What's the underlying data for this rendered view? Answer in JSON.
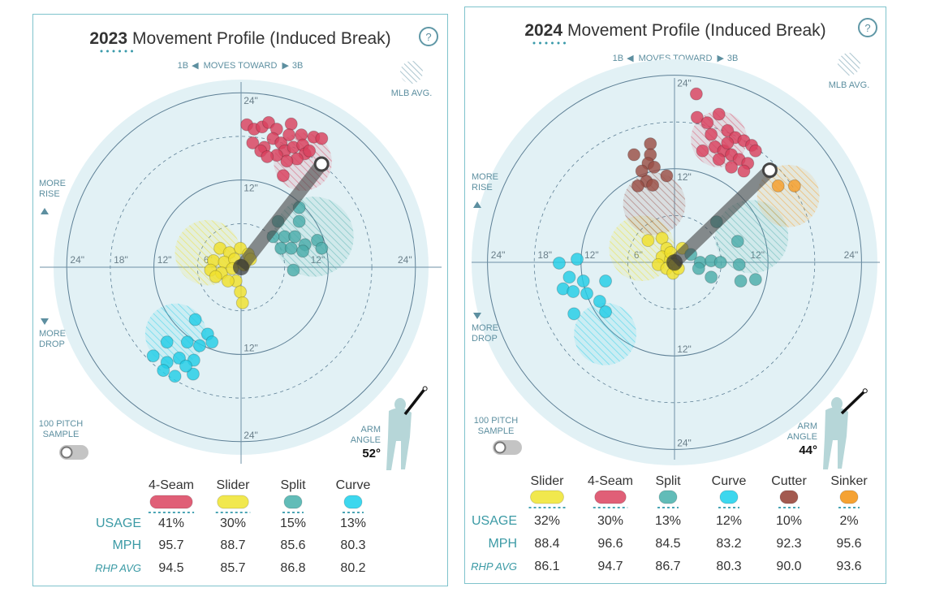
{
  "panels": [
    {
      "year": "2023",
      "title": "Movement Profile (Induced Break)",
      "help": "?",
      "moves": {
        "left": "1B",
        "middle": "MOVES TOWARD",
        "right": "3B"
      },
      "mlb_avg": "MLB AVG.",
      "more_rise": [
        "MORE",
        "RISE"
      ],
      "more_drop": [
        "MORE",
        "DROP"
      ],
      "sample": [
        "100 PITCH",
        "SAMPLE"
      ],
      "sample_toggle_on": false,
      "arm_angle_label": [
        "ARM",
        "ANGLE"
      ],
      "arm_angle": "52°",
      "arm_angle_deg": 52,
      "row_labels": [
        "USAGE",
        "MPH",
        "RHP AVG"
      ],
      "table": [
        {
          "name": "4-Seam",
          "pill": "#e05f77",
          "usage": "41%",
          "usage_pct": 41,
          "mph": "95.7",
          "rhp_avg": "94.5"
        },
        {
          "name": "Slider",
          "pill": "#f1e84e",
          "usage": "30%",
          "usage_pct": 30,
          "mph": "88.7",
          "rhp_avg": "85.7"
        },
        {
          "name": "Split",
          "pill": "#62bcb8",
          "usage": "15%",
          "usage_pct": 15,
          "mph": "85.6",
          "rhp_avg": "86.8"
        },
        {
          "name": "Curve",
          "pill": "#3dd7ee",
          "usage": "13%",
          "usage_pct": 13,
          "mph": "80.3",
          "rhp_avg": "80.2"
        }
      ]
    },
    {
      "year": "2024",
      "title": "Movement Profile (Induced Break)",
      "help": "?",
      "moves": {
        "left": "1B",
        "middle": "MOVES TOWARD",
        "right": "3B"
      },
      "mlb_avg": "MLB AVG.",
      "more_rise": [
        "MORE",
        "RISE"
      ],
      "more_drop": [
        "MORE",
        "DROP"
      ],
      "sample": [
        "100 PITCH",
        "SAMPLE"
      ],
      "sample_toggle_on": false,
      "arm_angle_label": [
        "ARM",
        "ANGLE"
      ],
      "arm_angle": "44°",
      "arm_angle_deg": 44,
      "row_labels": [
        "USAGE",
        "MPH",
        "RHP AVG"
      ],
      "table": [
        {
          "name": "Slider",
          "pill": "#f1e84e",
          "usage": "32%",
          "usage_pct": 32,
          "mph": "88.4",
          "rhp_avg": "86.1"
        },
        {
          "name": "4-Seam",
          "pill": "#e05f77",
          "usage": "30%",
          "usage_pct": 30,
          "mph": "96.6",
          "rhp_avg": "94.7"
        },
        {
          "name": "Split",
          "pill": "#62bcb8",
          "usage": "13%",
          "usage_pct": 13,
          "mph": "84.5",
          "rhp_avg": "86.7"
        },
        {
          "name": "Curve",
          "pill": "#3dd7ee",
          "usage": "12%",
          "usage_pct": 12,
          "mph": "83.2",
          "rhp_avg": "80.3"
        },
        {
          "name": "Cutter",
          "pill": "#a35a50",
          "usage": "10%",
          "usage_pct": 10,
          "mph": "92.3",
          "rhp_avg": "90.0"
        },
        {
          "name": "Sinker",
          "pill": "#f5a233",
          "usage": "2%",
          "usage_pct": 2,
          "mph": "95.6",
          "rhp_avg": "93.6"
        }
      ]
    }
  ],
  "chart_data": [
    {
      "type": "scatter",
      "title": "2023 Movement Profile (Induced Break)",
      "xlabel": "Horizontal break (in), 1B ← → 3B",
      "ylabel": "Induced vertical break (in)",
      "rings": [
        6,
        12,
        18,
        24
      ],
      "tick_labels": {
        "left": [
          "24\"",
          "18\"",
          "12\"",
          "6\""
        ],
        "right": [
          "12\"",
          "24\""
        ],
        "top": [
          "24\"",
          "12\""
        ],
        "bottom": [
          "12\"",
          "24\""
        ]
      },
      "series": [
        {
          "name": "4-Seam",
          "color": "#d9415e",
          "mlb_avg": {
            "x": 8.5,
            "y": 14.5,
            "r": 4
          },
          "points": [
            [
              0.8,
              19.6
            ],
            [
              1.8,
              19.0
            ],
            [
              2.9,
              19.3
            ],
            [
              3.8,
              19.9
            ],
            [
              4.9,
              19.0
            ],
            [
              6.9,
              19.7
            ],
            [
              8.3,
              18.2
            ],
            [
              10.0,
              17.9
            ],
            [
              11.1,
              17.7
            ],
            [
              1.6,
              17.1
            ],
            [
              3.2,
              16.5
            ],
            [
              4.4,
              17.7
            ],
            [
              5.5,
              17.1
            ],
            [
              6.0,
              16.0
            ],
            [
              7.2,
              16.5
            ],
            [
              8.5,
              16.8
            ],
            [
              8.8,
              15.6
            ],
            [
              7.7,
              14.9
            ],
            [
              6.3,
              14.6
            ],
            [
              4.9,
              15.4
            ],
            [
              2.7,
              16.0
            ],
            [
              5.8,
              12.6
            ],
            [
              9.4,
              16.0
            ],
            [
              6.6,
              18.2
            ],
            [
              3.6,
              15.2
            ]
          ]
        },
        {
          "name": "Slider",
          "color": "#f0e02c",
          "mlb_avg": {
            "x": -4.6,
            "y": 2.0,
            "r": 4.5
          },
          "points": [
            [
              -2.9,
              2.6
            ],
            [
              -1.6,
              2.0
            ],
            [
              -0.1,
              2.6
            ],
            [
              1.0,
              1.8
            ],
            [
              -3.8,
              0.9
            ],
            [
              -2.3,
              0.7
            ],
            [
              -0.9,
              1.1
            ],
            [
              0.4,
              0.3
            ],
            [
              -4.2,
              -0.4
            ],
            [
              -2.7,
              -0.8
            ],
            [
              -1.2,
              -0.2
            ],
            [
              -0.7,
              -1.9
            ],
            [
              -0.1,
              -3.4
            ],
            [
              0.2,
              -4.9
            ],
            [
              -1.8,
              -1.9
            ],
            [
              -3.5,
              -1.3
            ],
            [
              1.3,
              1.1
            ]
          ]
        },
        {
          "name": "Split",
          "color": "#4aaca9",
          "mlb_avg": {
            "x": 10.0,
            "y": 4.2,
            "r": 5.5
          },
          "points": [
            [
              8.0,
              8.2
            ],
            [
              5.1,
              6.3
            ],
            [
              8.0,
              6.3
            ],
            [
              6.0,
              4.2
            ],
            [
              7.4,
              4.2
            ],
            [
              8.8,
              3.1
            ],
            [
              10.5,
              3.7
            ],
            [
              11.1,
              2.6
            ],
            [
              5.5,
              2.6
            ],
            [
              6.9,
              2.6
            ],
            [
              7.2,
              -0.4
            ],
            [
              4.4,
              4.2
            ],
            [
              8.5,
              2.2
            ]
          ]
        },
        {
          "name": "Curve",
          "color": "#22cde6",
          "mlb_avg": {
            "x": -9.0,
            "y": -9.2,
            "r": 4.2
          },
          "points": [
            [
              -6.3,
              -7.2
            ],
            [
              -4.6,
              -9.2
            ],
            [
              -4.0,
              -10.3
            ],
            [
              -5.7,
              -10.8
            ],
            [
              -7.4,
              -10.3
            ],
            [
              -10.2,
              -10.3
            ],
            [
              -12.1,
              -12.2
            ],
            [
              -10.2,
              -13.1
            ],
            [
              -8.5,
              -12.5
            ],
            [
              -6.5,
              -12.8
            ],
            [
              -10.7,
              -14.2
            ],
            [
              -9.1,
              -15.0
            ],
            [
              -6.6,
              -14.7
            ],
            [
              -7.6,
              -13.6
            ]
          ]
        }
      ]
    },
    {
      "type": "scatter",
      "title": "2024 Movement Profile (Induced Break)",
      "xlabel": "Horizontal break (in), 1B ← → 3B",
      "ylabel": "Induced vertical break (in)",
      "rings": [
        6,
        12,
        18,
        24
      ],
      "tick_labels": {
        "left": [
          "24\"",
          "18\"",
          "12\"",
          "6\""
        ],
        "right": [
          "12\"",
          "24\""
        ],
        "top": [
          "24\"",
          "12\""
        ],
        "bottom": [
          "12\"",
          "24\""
        ]
      },
      "series": [
        {
          "name": "Slider",
          "color": "#f0e02c",
          "mlb_avg": {
            "x": -4.2,
            "y": 1.8,
            "r": 4.2
          },
          "points": [
            [
              -3.4,
              2.8
            ],
            [
              -1.6,
              3.1
            ],
            [
              -1.0,
              1.8
            ],
            [
              -1.6,
              0.7
            ],
            [
              -0.5,
              0.4
            ],
            [
              -2.1,
              -0.3
            ],
            [
              -1.0,
              -0.8
            ],
            [
              -0.2,
              -1.4
            ],
            [
              0.5,
              -0.8
            ],
            [
              -0.5,
              1.25
            ],
            [
              1.0,
              1.8
            ],
            [
              0,
              -0.3
            ]
          ]
        },
        {
          "name": "4-Seam",
          "color": "#d9415e",
          "mlb_avg": {
            "x": 5.7,
            "y": 15.8,
            "r": 3.6
          },
          "points": [
            [
              2.9,
              18.6
            ],
            [
              2.8,
              21.6
            ],
            [
              4.2,
              17.9
            ],
            [
              5.7,
              19.0
            ],
            [
              6.8,
              16.9
            ],
            [
              7.8,
              16.0
            ],
            [
              8.9,
              15.6
            ],
            [
              9.9,
              15.0
            ],
            [
              10.4,
              14.3
            ],
            [
              4.7,
              16.4
            ],
            [
              5.2,
              14.8
            ],
            [
              6.3,
              14.3
            ],
            [
              7.3,
              13.8
            ],
            [
              8.3,
              13.2
            ],
            [
              9.4,
              12.7
            ],
            [
              7.3,
              12.2
            ],
            [
              8.9,
              11.7
            ],
            [
              5.7,
              13.2
            ],
            [
              3.6,
              14.3
            ],
            [
              6.8,
              15.3
            ]
          ]
        },
        {
          "name": "Split",
          "color": "#4aaca9",
          "mlb_avg": {
            "x": 9.9,
            "y": 3.3,
            "r": 4.7
          },
          "points": [
            [
              5.4,
              5.2
            ],
            [
              8.1,
              2.7
            ],
            [
              2.1,
              1.0
            ],
            [
              3.3,
              0
            ],
            [
              4.7,
              0.2
            ],
            [
              5.9,
              0
            ],
            [
              3.1,
              -0.8
            ],
            [
              4.7,
              -1.9
            ],
            [
              8.3,
              -0.3
            ],
            [
              8.5,
              -2.4
            ],
            [
              10.4,
              -2.2
            ]
          ]
        },
        {
          "name": "Curve",
          "color": "#22cde6",
          "mlb_avg": {
            "x": -8.9,
            "y": -9.2,
            "r": 4
          },
          "points": [
            [
              -14.8,
              -0.1
            ],
            [
              -12.5,
              0.4
            ],
            [
              -13.5,
              -1.9
            ],
            [
              -11.7,
              -2.4
            ],
            [
              -14.3,
              -3.4
            ],
            [
              -13.0,
              -3.75
            ],
            [
              -11.25,
              -4.0
            ],
            [
              -8.85,
              -2.4
            ],
            [
              -9.6,
              -5.0
            ],
            [
              -8.85,
              -6.35
            ],
            [
              -12.9,
              -6.6
            ]
          ]
        },
        {
          "name": "Cutter",
          "color": "#9a4e45",
          "mlb_avg": {
            "x": -2.6,
            "y": 7.5,
            "r": 4
          },
          "points": [
            [
              -3.1,
              15.2
            ],
            [
              -5.2,
              13.8
            ],
            [
              -3.1,
              13.8
            ],
            [
              -3.4,
              12.7
            ],
            [
              -2.6,
              12.2
            ],
            [
              -4.2,
              11.7
            ],
            [
              -3.6,
              10.4
            ],
            [
              -1.0,
              11.1
            ],
            [
              -4.7,
              9.8
            ],
            [
              -2.8,
              9.9
            ]
          ]
        },
        {
          "name": "Sinker",
          "color": "#f59e2a",
          "mlb_avg": {
            "x": 14.6,
            "y": 8.5,
            "r": 4
          },
          "points": [
            [
              13.3,
              9.8
            ],
            [
              15.4,
              9.8
            ]
          ]
        }
      ]
    }
  ]
}
